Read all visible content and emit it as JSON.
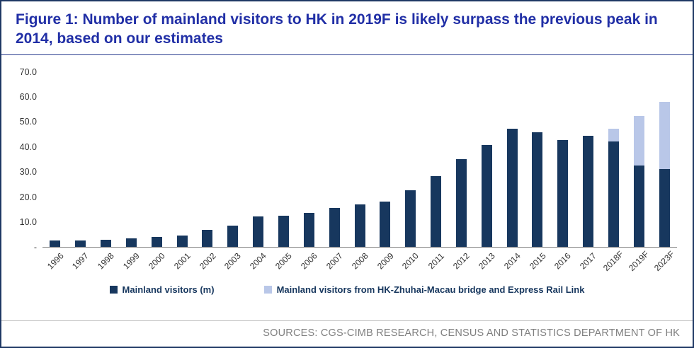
{
  "figure": {
    "title": "Figure 1: Number of mainland visitors to HK in 2019F is likely surpass the previous peak in 2014, based on our estimates",
    "source": "SOURCES: CGS-CIMB RESEARCH, CENSUS AND STATISTICS DEPARTMENT OF HK"
  },
  "colors": {
    "title_text": "#212FA6",
    "border": "#1F3864",
    "bar_dark": "#17375E",
    "bar_light": "#B9C7E8",
    "axis_text": "#333333",
    "source_text": "#808080"
  },
  "chart_data": {
    "type": "bar",
    "stacked": true,
    "title": "Number of mainland visitors to HK (m)",
    "xlabel": "",
    "ylabel": "",
    "ylim": [
      0,
      70
    ],
    "ytick_step": 10,
    "ytick_labels": [
      "-",
      "10.0",
      "20.0",
      "30.0",
      "40.0",
      "50.0",
      "60.0",
      "70.0"
    ],
    "grid": false,
    "legend_position": "bottom",
    "categories": [
      "1996",
      "1997",
      "1998",
      "1999",
      "2000",
      "2001",
      "2002",
      "2003",
      "2004",
      "2005",
      "2006",
      "2007",
      "2008",
      "2009",
      "2010",
      "2011",
      "2012",
      "2013",
      "2014",
      "2015",
      "2016",
      "2017",
      "2018F",
      "2019F",
      "2023F"
    ],
    "series": [
      {
        "name": "Mainland visitors (m)",
        "color": "#17375E",
        "values": [
          2.3,
          2.3,
          2.6,
          3.2,
          3.9,
          4.5,
          6.8,
          8.5,
          12.2,
          12.5,
          13.6,
          15.5,
          17.0,
          18.0,
          22.7,
          28.1,
          34.9,
          40.7,
          47.2,
          45.8,
          42.8,
          44.4,
          42.2,
          32.6,
          31.2
        ]
      },
      {
        "name": "Mainland visitors from HK-Zhuhai-Macau bridge and Express Rail Link",
        "color": "#B9C7E8",
        "values": [
          0,
          0,
          0,
          0,
          0,
          0,
          0,
          0,
          0,
          0,
          0,
          0,
          0,
          0,
          0,
          0,
          0,
          0,
          0,
          0,
          0,
          0,
          4.9,
          19.8,
          26.7
        ]
      }
    ]
  }
}
